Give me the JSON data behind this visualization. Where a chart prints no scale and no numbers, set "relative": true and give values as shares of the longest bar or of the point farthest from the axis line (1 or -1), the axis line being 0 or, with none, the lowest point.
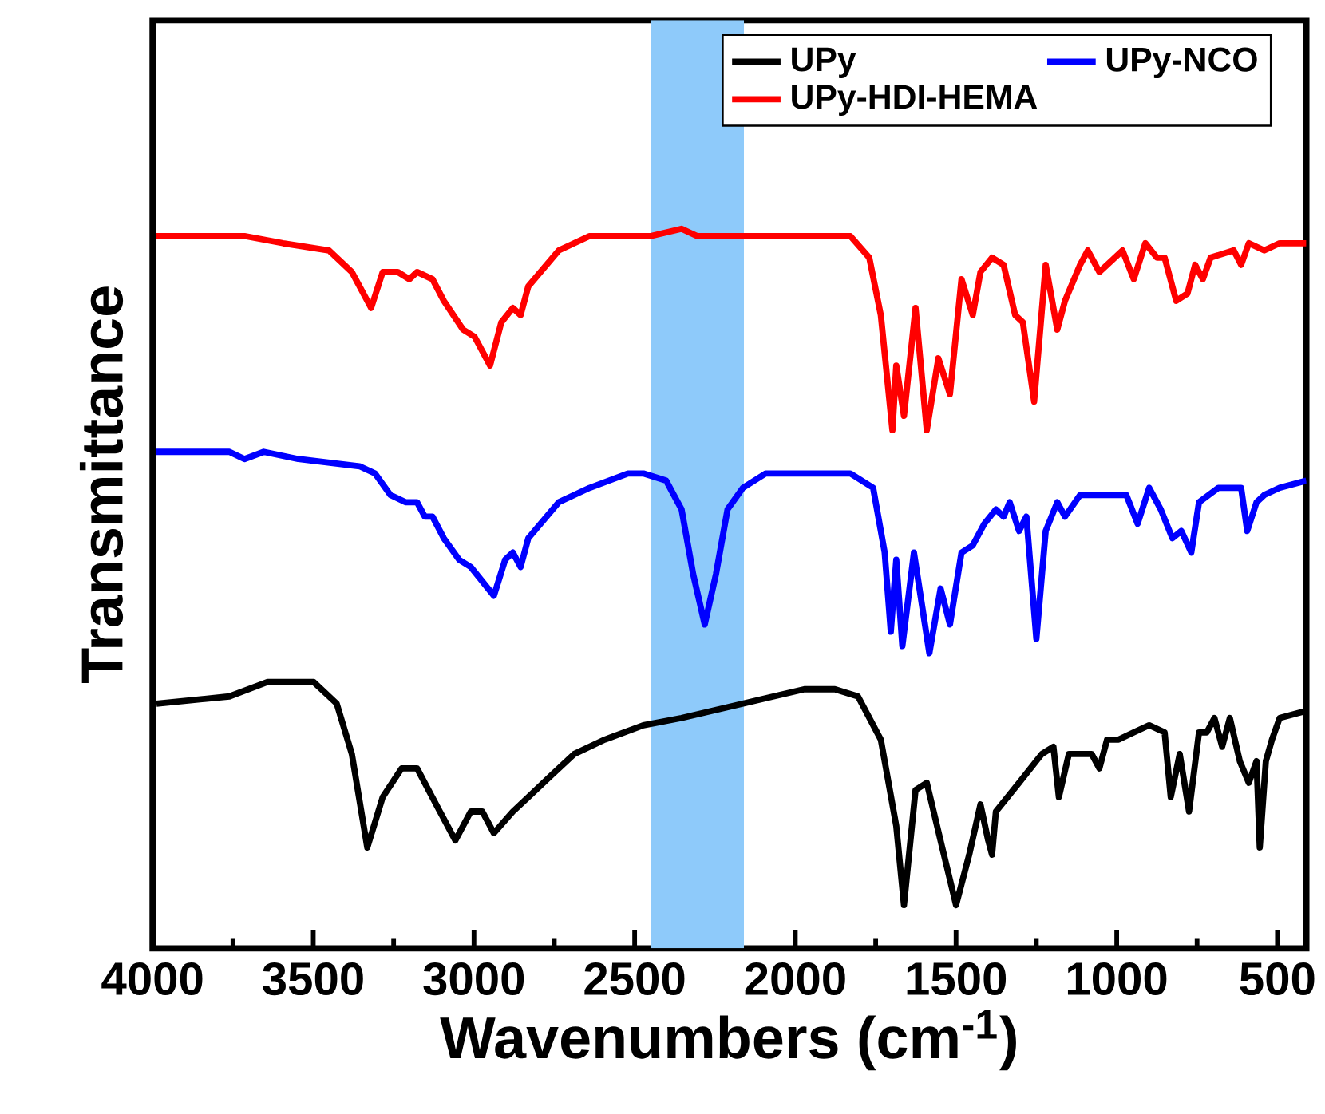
{
  "chart_data": {
    "type": "line",
    "xlabel": "Wavenumbers (cm$^{-1}$)",
    "ylabel": "Transmittance",
    "relative": true,
    "xlim": [
      4000,
      410
    ],
    "xticks": [
      4000,
      3500,
      3000,
      2500,
      2000,
      1500,
      1000,
      500
    ],
    "legend": "top right",
    "grid": false,
    "bands": [
      {
        "axis": "x",
        "from": 2450,
        "to": 2160,
        "color": "#8ecafa"
      }
    ],
    "series": [
      {
        "name": "UPy",
        "color": "#000000",
        "x": [
          3988,
          3761,
          3642,
          3499,
          3427,
          3380,
          3332,
          3284,
          3225,
          3177,
          3106,
          3058,
          3010,
          2974,
          2938,
          2879,
          2831,
          2760,
          2688,
          2593,
          2473,
          2354,
          2163,
          2068,
          1972,
          1877,
          1805,
          1734,
          1686,
          1662,
          1626,
          1591,
          1543,
          1500,
          1459,
          1424,
          1400,
          1388,
          1376,
          1340,
          1304,
          1233,
          1197,
          1180,
          1149,
          1078,
          1054,
          1030,
          994,
          947,
          899,
          851,
          832,
          804,
          775,
          744,
          720,
          696,
          672,
          648,
          617,
          589,
          565,
          555,
          536,
          517,
          493,
          410
        ],
        "values": [
          0.34,
          0.35,
          0.37,
          0.37,
          0.34,
          0.27,
          0.14,
          0.21,
          0.25,
          0.25,
          0.19,
          0.15,
          0.19,
          0.19,
          0.16,
          0.19,
          0.21,
          0.24,
          0.27,
          0.29,
          0.31,
          0.32,
          0.34,
          0.35,
          0.36,
          0.36,
          0.35,
          0.29,
          0.17,
          0.06,
          0.22,
          0.23,
          0.14,
          0.06,
          0.13,
          0.2,
          0.15,
          0.13,
          0.19,
          0.21,
          0.23,
          0.27,
          0.28,
          0.21,
          0.27,
          0.27,
          0.25,
          0.29,
          0.29,
          0.3,
          0.31,
          0.3,
          0.21,
          0.27,
          0.19,
          0.3,
          0.3,
          0.32,
          0.28,
          0.32,
          0.26,
          0.23,
          0.26,
          0.14,
          0.26,
          0.29,
          0.32,
          0.33
        ]
      },
      {
        "name": "UPy-NCO",
        "color": "#0000ff",
        "x": [
          3988,
          3761,
          3714,
          3654,
          3547,
          3356,
          3308,
          3260,
          3213,
          3177,
          3153,
          3129,
          3094,
          3046,
          3010,
          2974,
          2938,
          2903,
          2879,
          2855,
          2831,
          2736,
          2640,
          2521,
          2473,
          2402,
          2354,
          2318,
          2282,
          2247,
          2211,
          2163,
          2092,
          1925,
          1829,
          1758,
          1722,
          1703,
          1686,
          1667,
          1631,
          1583,
          1548,
          1519,
          1483,
          1448,
          1412,
          1376,
          1352,
          1333,
          1304,
          1281,
          1250,
          1221,
          1185,
          1161,
          1114,
          1042,
          970,
          935,
          899,
          863,
          827,
          799,
          768,
          744,
          684,
          613,
          594,
          565,
          541,
          493,
          410
        ],
        "values": [
          0.69,
          0.69,
          0.68,
          0.69,
          0.68,
          0.67,
          0.66,
          0.63,
          0.62,
          0.62,
          0.6,
          0.6,
          0.57,
          0.54,
          0.53,
          0.51,
          0.49,
          0.54,
          0.55,
          0.53,
          0.57,
          0.62,
          0.64,
          0.66,
          0.66,
          0.65,
          0.61,
          0.52,
          0.45,
          0.52,
          0.61,
          0.64,
          0.66,
          0.66,
          0.66,
          0.64,
          0.55,
          0.44,
          0.54,
          0.42,
          0.55,
          0.41,
          0.5,
          0.45,
          0.55,
          0.56,
          0.59,
          0.61,
          0.6,
          0.62,
          0.58,
          0.6,
          0.43,
          0.58,
          0.62,
          0.6,
          0.63,
          0.63,
          0.63,
          0.59,
          0.64,
          0.61,
          0.57,
          0.58,
          0.55,
          0.62,
          0.64,
          0.64,
          0.58,
          0.62,
          0.63,
          0.64,
          0.65
        ]
      },
      {
        "name": "UPy-HDI-HEMA",
        "color": "#ff0000",
        "x": [
          3988,
          3714,
          3594,
          3451,
          3380,
          3320,
          3284,
          3237,
          3201,
          3177,
          3129,
          3094,
          3034,
          2998,
          2950,
          2915,
          2879,
          2855,
          2831,
          2736,
          2640,
          2449,
          2354,
          2306,
          2163,
          1925,
          1829,
          1770,
          1734,
          1698,
          1686,
          1662,
          1626,
          1591,
          1555,
          1519,
          1483,
          1448,
          1424,
          1388,
          1352,
          1316,
          1292,
          1257,
          1221,
          1185,
          1161,
          1114,
          1090,
          1054,
          982,
          947,
          911,
          875,
          851,
          815,
          780,
          756,
          732,
          708,
          636,
          613,
          589,
          541,
          493,
          410
        ],
        "values": [
          0.99,
          0.99,
          0.98,
          0.97,
          0.94,
          0.89,
          0.94,
          0.94,
          0.93,
          0.94,
          0.93,
          0.9,
          0.86,
          0.85,
          0.81,
          0.87,
          0.89,
          0.88,
          0.92,
          0.97,
          0.99,
          0.99,
          1.0,
          0.99,
          0.99,
          0.99,
          0.99,
          0.96,
          0.88,
          0.72,
          0.81,
          0.74,
          0.89,
          0.72,
          0.82,
          0.77,
          0.93,
          0.88,
          0.94,
          0.96,
          0.95,
          0.88,
          0.87,
          0.76,
          0.95,
          0.86,
          0.9,
          0.95,
          0.97,
          0.94,
          0.97,
          0.93,
          0.98,
          0.96,
          0.96,
          0.9,
          0.91,
          0.95,
          0.93,
          0.96,
          0.97,
          0.95,
          0.98,
          0.97,
          0.98,
          0.98
        ]
      }
    ]
  }
}
